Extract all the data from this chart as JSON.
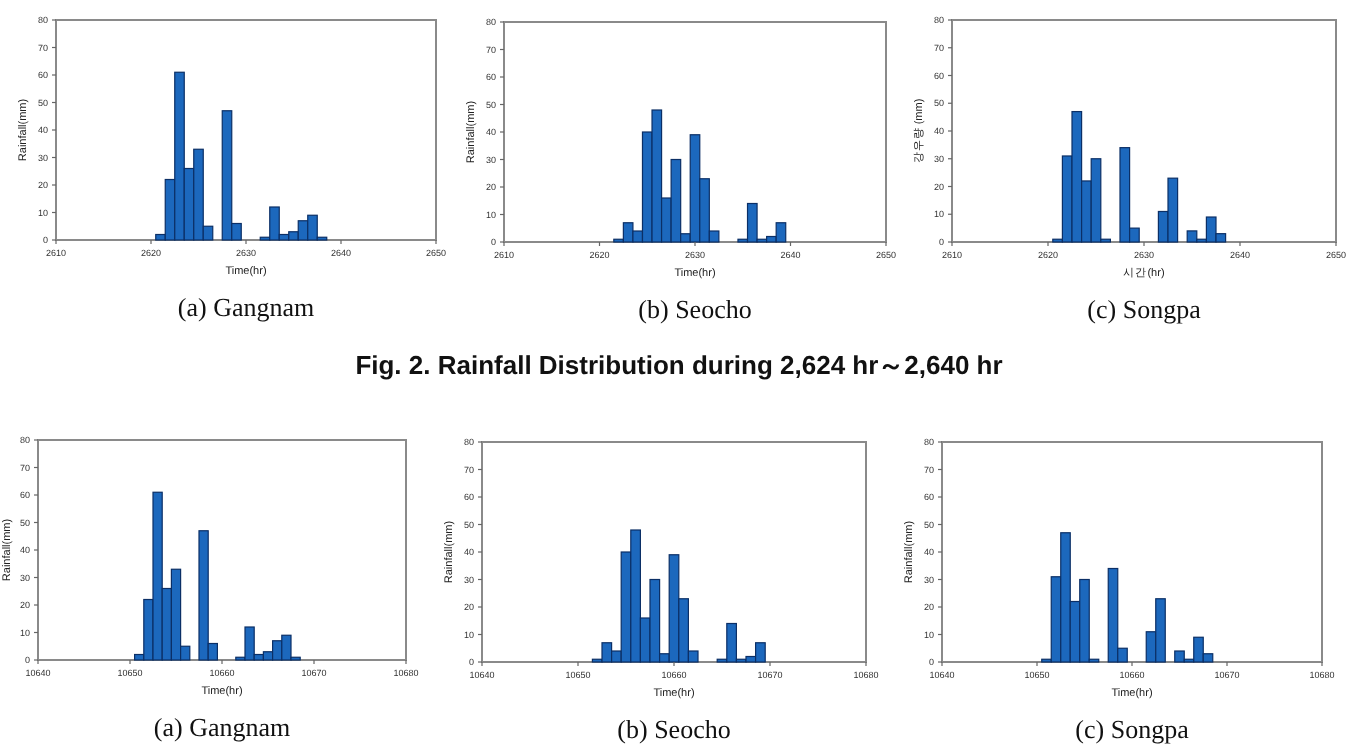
{
  "chart_data": [
    {
      "type": "histogram",
      "xlabel": "Time(hr)",
      "ylabel": "Rainfall(mm)",
      "color": "#1c68bd",
      "xlim": [
        2610,
        2650
      ],
      "xticks": [
        2610,
        2620,
        2630,
        2640,
        2650
      ],
      "ylim": [
        0,
        80
      ],
      "yticks": [
        0,
        10,
        20,
        30,
        40,
        50,
        60,
        70,
        80
      ],
      "bins": [
        2620.5,
        2621.5,
        2622.5,
        2623.5,
        2624.5,
        2625.5,
        2626.5,
        2627.5,
        2628.5,
        2629.5,
        2630.5,
        2631.5,
        2632.5,
        2633.5,
        2634.5,
        2635.5,
        2636.5,
        2637.5,
        2638.5
      ],
      "values": [
        2,
        22,
        61,
        26,
        33,
        5,
        0,
        47,
        6,
        0,
        0,
        1,
        12,
        2,
        3,
        7,
        9,
        1
      ],
      "annotations": [
        "(a) Gangnam"
      ]
    },
    {
      "type": "histogram",
      "xlabel": "Time(hr)",
      "ylabel": "Rainfall(mm)",
      "color": "#1c68bd",
      "xlim": [
        2610,
        2650
      ],
      "xticks": [
        2610,
        2620,
        2630,
        2640,
        2650
      ],
      "ylim": [
        0,
        80
      ],
      "yticks": [
        0,
        10,
        20,
        30,
        40,
        50,
        60,
        70,
        80
      ],
      "bins": [
        2621.5,
        2622.5,
        2623.5,
        2624.5,
        2625.5,
        2626.5,
        2627.5,
        2628.5,
        2629.5,
        2630.5,
        2631.5,
        2632.5,
        2633.5,
        2634.5,
        2635.5,
        2636.5,
        2637.5,
        2638.5,
        2639.5
      ],
      "values": [
        1,
        7,
        4,
        40,
        48,
        16,
        30,
        3,
        39,
        23,
        4,
        0,
        0,
        1,
        14,
        1,
        2,
        7
      ],
      "annotations": [
        "(b) Seocho",
        "Fig. 2. Rainfall Distribution during 2,624 hr～2,640 hr"
      ]
    },
    {
      "type": "histogram",
      "xlabel": "시간(hr)",
      "ylabel": "강우량 (mm)",
      "color": "#1c68bd",
      "xlim": [
        2610,
        2650
      ],
      "xticks": [
        2610,
        2620,
        2630,
        2640,
        2650
      ],
      "ylim": [
        0,
        80
      ],
      "yticks": [
        0,
        10,
        20,
        30,
        40,
        50,
        60,
        70,
        80
      ],
      "bins": [
        2620.5,
        2621.5,
        2622.5,
        2623.5,
        2624.5,
        2625.5,
        2626.5,
        2627.5,
        2628.5,
        2629.5,
        2630.5,
        2631.5,
        2632.5,
        2633.5,
        2634.5,
        2635.5,
        2636.5,
        2637.5,
        2638.5
      ],
      "values": [
        1,
        31,
        47,
        22,
        30,
        1,
        0,
        34,
        5,
        0,
        0,
        11,
        23,
        0,
        4,
        1,
        9,
        3
      ],
      "annotations": [
        "(c) Songpa"
      ]
    },
    {
      "type": "histogram",
      "xlabel": "Time(hr)",
      "ylabel": "Rainfall(mm)",
      "color": "#1c68bd",
      "xlim": [
        10640,
        10680
      ],
      "xticks": [
        10640,
        10650,
        10660,
        10670,
        10680
      ],
      "ylim": [
        0,
        80
      ],
      "yticks": [
        0,
        10,
        20,
        30,
        40,
        50,
        60,
        70,
        80
      ],
      "bins": [
        10650.5,
        10651.5,
        10652.5,
        10653.5,
        10654.5,
        10655.5,
        10656.5,
        10657.5,
        10658.5,
        10659.5,
        10660.5,
        10661.5,
        10662.5,
        10663.5,
        10664.5,
        10665.5,
        10666.5,
        10667.5,
        10668.5
      ],
      "values": [
        2,
        22,
        61,
        26,
        33,
        5,
        0,
        47,
        6,
        0,
        0,
        1,
        12,
        2,
        3,
        7,
        9,
        1
      ],
      "annotations": [
        "(a) Gangnam"
      ]
    },
    {
      "type": "histogram",
      "xlabel": "Time(hr)",
      "ylabel": "Rainfall(mm)",
      "color": "#1c68bd",
      "xlim": [
        10640,
        10680
      ],
      "xticks": [
        10640,
        10650,
        10660,
        10670,
        10680
      ],
      "ylim": [
        0,
        80
      ],
      "yticks": [
        0,
        10,
        20,
        30,
        40,
        50,
        60,
        70,
        80
      ],
      "bins": [
        10651.5,
        10652.5,
        10653.5,
        10654.5,
        10655.5,
        10656.5,
        10657.5,
        10658.5,
        10659.5,
        10660.5,
        10661.5,
        10662.5,
        10663.5,
        10664.5,
        10665.5,
        10666.5,
        10667.5,
        10668.5,
        10669.5
      ],
      "values": [
        1,
        7,
        4,
        40,
        48,
        16,
        30,
        3,
        39,
        23,
        4,
        0,
        0,
        1,
        14,
        1,
        2,
        7
      ],
      "annotations": [
        "(b) Seocho"
      ]
    },
    {
      "type": "histogram",
      "xlabel": "Time(hr)",
      "ylabel": "Rainfall(mm)",
      "color": "#1c68bd",
      "xlim": [
        10640,
        10680
      ],
      "xticks": [
        10640,
        10650,
        10660,
        10670,
        10680
      ],
      "ylim": [
        0,
        80
      ],
      "yticks": [
        0,
        10,
        20,
        30,
        40,
        50,
        60,
        70,
        80
      ],
      "bins": [
        10650.5,
        10651.5,
        10652.5,
        10653.5,
        10654.5,
        10655.5,
        10656.5,
        10657.5,
        10658.5,
        10659.5,
        10660.5,
        10661.5,
        10662.5,
        10663.5,
        10664.5,
        10665.5,
        10666.5,
        10667.5,
        10668.5
      ],
      "values": [
        1,
        31,
        47,
        22,
        30,
        1,
        0,
        34,
        5,
        0,
        0,
        11,
        23,
        0,
        4,
        1,
        9,
        3
      ],
      "annotations": [
        "(c) Songpa"
      ]
    }
  ]
}
